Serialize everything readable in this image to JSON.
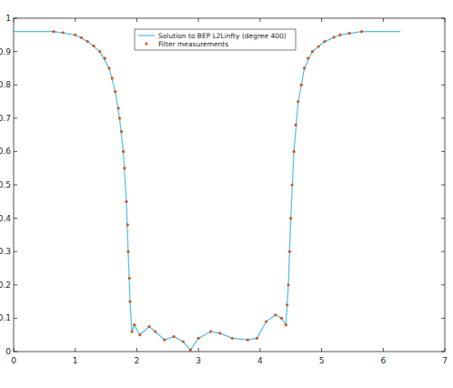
{
  "chart_data": {
    "type": "line",
    "xlim": [
      0,
      7
    ],
    "xticks": [
      0,
      1,
      2,
      3,
      4,
      5,
      6,
      7
    ],
    "ylim": [
      0,
      1
    ],
    "yticks": [
      0,
      0.1,
      0.2,
      0.3,
      0.4,
      0.5,
      0.6,
      0.7,
      0.8,
      0.9,
      1
    ],
    "grid": false,
    "legend": "top",
    "series": [
      {
        "name": "Solution to BEP L2Linfty (degree 400)",
        "type": "line",
        "color": "#4dbeee",
        "line_style": "solid",
        "x": [
          0,
          0.65,
          1.0,
          1.2,
          1.4,
          1.55,
          1.65,
          1.72,
          1.78,
          1.83,
          1.86,
          1.89,
          1.92,
          1.96,
          2.05,
          2.2,
          2.3,
          2.45,
          2.6,
          2.75,
          2.87,
          3.0,
          3.2,
          3.35,
          3.55,
          3.8,
          3.95,
          4.1,
          4.25,
          4.35,
          4.42,
          4.46,
          4.5,
          4.55,
          4.62,
          4.72,
          4.85,
          5.05,
          5.3,
          5.65,
          6.28
        ],
        "values": [
          0.96,
          0.96,
          0.95,
          0.93,
          0.9,
          0.85,
          0.78,
          0.7,
          0.6,
          0.45,
          0.3,
          0.15,
          0.06,
          0.08,
          0.05,
          0.075,
          0.06,
          0.035,
          0.045,
          0.03,
          0.005,
          0.04,
          0.06,
          0.055,
          0.04,
          0.035,
          0.04,
          0.09,
          0.11,
          0.1,
          0.08,
          0.2,
          0.4,
          0.6,
          0.75,
          0.85,
          0.9,
          0.93,
          0.95,
          0.96,
          0.96
        ]
      },
      {
        "name": "Filter measurements",
        "type": "scatter",
        "color": "#d95319",
        "marker": "dot",
        "x": [
          0.65,
          0.8,
          1.0,
          1.1,
          1.2,
          1.3,
          1.4,
          1.48,
          1.55,
          1.6,
          1.65,
          1.7,
          1.72,
          1.75,
          1.78,
          1.8,
          1.83,
          1.85,
          1.86,
          1.88,
          1.89,
          1.92,
          1.96,
          2.05,
          2.2,
          2.3,
          2.45,
          2.6,
          2.75,
          2.87,
          3.0,
          3.2,
          3.35,
          3.55,
          3.8,
          3.95,
          4.1,
          4.25,
          4.35,
          4.42,
          4.44,
          4.46,
          4.48,
          4.5,
          4.52,
          4.55,
          4.58,
          4.62,
          4.67,
          4.72,
          4.78,
          4.85,
          4.95,
          5.05,
          5.2,
          5.3,
          5.45,
          5.65
        ],
        "values": [
          0.96,
          0.957,
          0.95,
          0.942,
          0.93,
          0.917,
          0.9,
          0.88,
          0.85,
          0.82,
          0.78,
          0.73,
          0.7,
          0.66,
          0.6,
          0.55,
          0.45,
          0.38,
          0.3,
          0.22,
          0.15,
          0.06,
          0.08,
          0.05,
          0.075,
          0.06,
          0.035,
          0.045,
          0.03,
          0.005,
          0.04,
          0.06,
          0.055,
          0.04,
          0.035,
          0.04,
          0.09,
          0.11,
          0.1,
          0.08,
          0.14,
          0.2,
          0.3,
          0.4,
          0.5,
          0.6,
          0.68,
          0.75,
          0.8,
          0.85,
          0.88,
          0.9,
          0.915,
          0.93,
          0.943,
          0.95,
          0.955,
          0.96
        ]
      }
    ]
  }
}
